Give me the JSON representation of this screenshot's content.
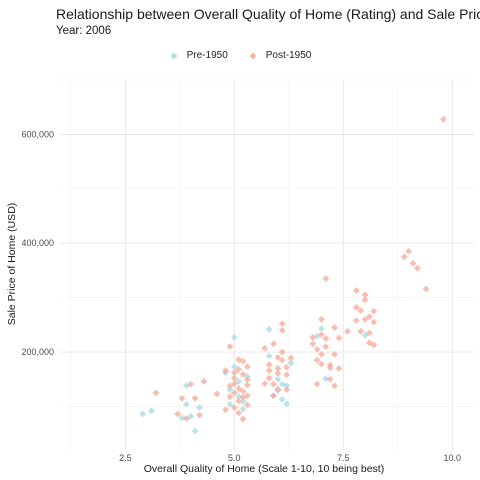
{
  "chart_data": {
    "type": "scatter",
    "title": "Relationship between Overall Quality of Home (Rating) and Sale Price",
    "subtitle": "Year: 2006",
    "xlabel": "Overall Quality of Home (Scale 1-10, 10 being best)",
    "ylabel": "Sale Price of Home (USD)",
    "xlim": [
      1,
      10.5
    ],
    "ylim": [
      20000,
      700000
    ],
    "x_ticks": [
      2.5,
      5.0,
      7.5,
      10.0
    ],
    "x_tick_labels": [
      "2.5",
      "5.0",
      "7.5",
      "10.0"
    ],
    "y_ticks": [
      200000,
      400000,
      600000
    ],
    "y_tick_labels": [
      "200,000",
      "400,000",
      "600,000"
    ],
    "grid": true,
    "legend_position": "top",
    "series": [
      {
        "name": "Pre-1950",
        "color": "#a6d8e6",
        "points": [
          [
            2.9,
            86000
          ],
          [
            3.1,
            92000
          ],
          [
            3.8,
            79000
          ],
          [
            3.9,
            138000
          ],
          [
            3.9,
            104000
          ],
          [
            4.0,
            82000
          ],
          [
            4.1,
            55000
          ],
          [
            4.2,
            98000
          ],
          [
            4.8,
            162000
          ],
          [
            4.9,
            131000
          ],
          [
            5.0,
            173000
          ],
          [
            5.0,
            227000
          ],
          [
            5.1,
            146000
          ],
          [
            5.1,
            118000
          ],
          [
            5.2,
            109000
          ],
          [
            5.2,
            95000
          ],
          [
            5.3,
            155000
          ],
          [
            4.9,
            104000
          ],
          [
            5.8,
            242000
          ],
          [
            5.8,
            193000
          ],
          [
            5.9,
            120000
          ],
          [
            6.0,
            129000
          ],
          [
            6.0,
            150000
          ],
          [
            6.1,
            141000
          ],
          [
            6.1,
            113000
          ],
          [
            6.2,
            138000
          ],
          [
            6.3,
            180000
          ],
          [
            6.2,
            105000
          ],
          [
            6.9,
            229000
          ],
          [
            7.0,
            243000
          ],
          [
            7.1,
            151000
          ],
          [
            8.0,
            231000
          ]
        ]
      },
      {
        "name": "Post-1950",
        "color": "#f4a898",
        "points": [
          [
            3.2,
            125000
          ],
          [
            3.7,
            86000
          ],
          [
            3.8,
            115000
          ],
          [
            3.9,
            78000
          ],
          [
            4.0,
            141000
          ],
          [
            4.1,
            115000
          ],
          [
            4.2,
            84000
          ],
          [
            4.3,
            146000
          ],
          [
            4.6,
            123000
          ],
          [
            4.8,
            166000
          ],
          [
            4.9,
            118000
          ],
          [
            5.0,
            142000
          ],
          [
            5.0,
            98000
          ],
          [
            5.0,
            152000
          ],
          [
            5.1,
            133000
          ],
          [
            5.1,
            186000
          ],
          [
            5.1,
            110000
          ],
          [
            5.2,
            128000
          ],
          [
            5.2,
            159000
          ],
          [
            5.3,
            149000
          ],
          [
            5.3,
            139000
          ],
          [
            5.3,
            173000
          ],
          [
            5.2,
            183000
          ],
          [
            4.9,
            210000
          ],
          [
            5.0,
            125000
          ],
          [
            5.1,
            88000
          ],
          [
            5.2,
            77000
          ],
          [
            5.3,
            120000
          ],
          [
            4.9,
            138000
          ],
          [
            5.0,
            162000
          ],
          [
            5.2,
            117000
          ],
          [
            5.3,
            103000
          ],
          [
            4.8,
            94000
          ],
          [
            5.1,
            168000
          ],
          [
            5.7,
            207000
          ],
          [
            5.8,
            166000
          ],
          [
            5.8,
            177000
          ],
          [
            5.8,
            152000
          ],
          [
            5.9,
            215000
          ],
          [
            5.9,
            141000
          ],
          [
            6.0,
            190000
          ],
          [
            6.0,
            170000
          ],
          [
            6.0,
            161000
          ],
          [
            6.1,
            185000
          ],
          [
            6.1,
            200000
          ],
          [
            6.2,
            172000
          ],
          [
            6.2,
            158000
          ],
          [
            6.3,
            189000
          ],
          [
            6.2,
            131000
          ],
          [
            6.1,
            252000
          ],
          [
            6.1,
            240000
          ],
          [
            6.0,
            132000
          ],
          [
            5.9,
            120000
          ],
          [
            5.7,
            142000
          ],
          [
            6.8,
            215000
          ],
          [
            6.9,
            205000
          ],
          [
            6.9,
            185000
          ],
          [
            7.0,
            178000
          ],
          [
            7.0,
            196000
          ],
          [
            7.0,
            232000
          ],
          [
            7.1,
            210000
          ],
          [
            7.1,
            225000
          ],
          [
            7.2,
            171000
          ],
          [
            7.2,
            150000
          ],
          [
            7.3,
            138000
          ],
          [
            7.3,
            196000
          ],
          [
            7.4,
            226000
          ],
          [
            7.1,
            335000
          ],
          [
            7.0,
            260000
          ],
          [
            7.3,
            245000
          ],
          [
            6.9,
            141000
          ],
          [
            6.8,
            227000
          ],
          [
            7.2,
            176000
          ],
          [
            7.4,
            170000
          ],
          [
            7.6,
            238000
          ],
          [
            7.8,
            313000
          ],
          [
            7.8,
            282000
          ],
          [
            7.8,
            258000
          ],
          [
            7.9,
            276000
          ],
          [
            8.0,
            305000
          ],
          [
            8.0,
            260000
          ],
          [
            8.1,
            265000
          ],
          [
            8.1,
            235000
          ],
          [
            8.2,
            255000
          ],
          [
            8.2,
            275000
          ],
          [
            8.1,
            217000
          ],
          [
            8.2,
            213000
          ],
          [
            7.9,
            238000
          ],
          [
            8.0,
            296000
          ],
          [
            8.9,
            375000
          ],
          [
            9.0,
            385000
          ],
          [
            9.1,
            363000
          ],
          [
            9.2,
            354000
          ],
          [
            9.4,
            316000
          ],
          [
            9.8,
            628000
          ]
        ]
      }
    ]
  }
}
